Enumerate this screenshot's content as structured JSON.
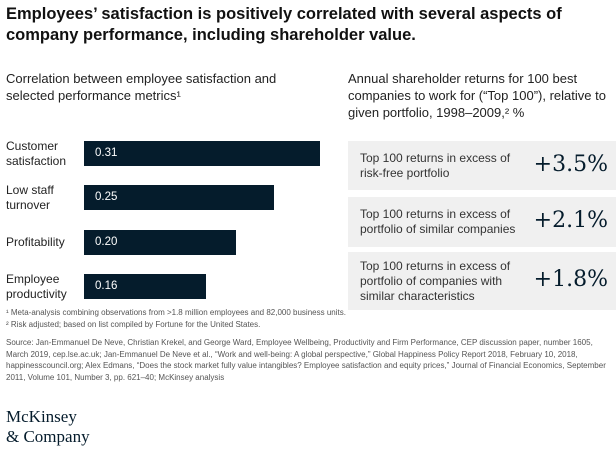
{
  "title": "Employees’ satisfaction is positively correlated with several aspects of company performance, including shareholder value.",
  "chart_data": [
    {
      "type": "bar",
      "orientation": "horizontal",
      "title": "Correlation between employee satisfaction and selected performance metrics¹",
      "categories": [
        "Customer satisfaction",
        "Low staff turnover",
        "Profitability",
        "Employee productivity"
      ],
      "values": [
        0.31,
        0.25,
        0.2,
        0.16
      ],
      "labels": [
        "0.31",
        "0.25",
        "0.20",
        "0.16"
      ],
      "xlim": [
        0,
        0.31
      ],
      "grid": false,
      "bar_color": "#051c2c"
    },
    {
      "type": "table",
      "title": "Annual shareholder returns for 100 best companies to work for (“Top 100”), relative to given portfolio, 1998–2009,² %",
      "rows": [
        {
          "label": "Top 100 returns in excess of risk-free portfolio",
          "value": "+3.5%"
        },
        {
          "label": "Top 100 returns in excess of portfolio of similar companies",
          "value": "+2.1%"
        },
        {
          "label": "Top 100 returns in excess of portfolio of companies with similar characteristics",
          "value": "+1.8%"
        }
      ]
    }
  ],
  "footnotes": [
    "¹ Meta-analysis combining observations from >1.8 million employees and 82,000 business units.",
    "² Risk adjusted; based on list compiled by Fortune for the United States."
  ],
  "source": "Source: Jan-Emmanuel De Neve, Christian Krekel, and George Ward, Employee Wellbeing, Productivity and Firm Performance, CEP discussion paper, number 1605, March 2019, cep.lse.ac.uk; Jan-Emmanuel De Neve et al., “Work and well-being: A global perspective,” Global Happiness Policy Report 2018, February 10, 2018, happinesscouncil.org; Alex Edmans, “Does the stock market fully value intangibles? Employee satisfaction and equity prices,” Journal of Financial Economics, September 2011, Volume 101, Number 3, pp. 621–40; McKinsey analysis",
  "logo": [
    "McKinsey",
    "& Company"
  ]
}
